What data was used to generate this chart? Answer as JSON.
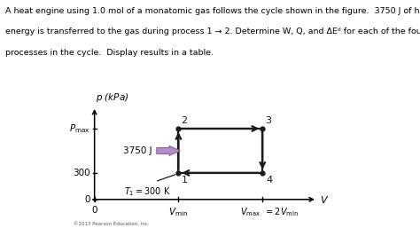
{
  "bg_color": "#ffffff",
  "text_color": "#000000",
  "cycle_color": "#1a1a1a",
  "copyright": "©2013 Pearson Education, Inc.",
  "Vmin": 1.0,
  "Vmax": 2.0,
  "P300": 0.3,
  "Pmax": 0.8,
  "line1": "A heat engine using 1.0 mol of a monatomic gas follows the cycle shown in the figure.  3750 J of heat",
  "line2": "energy is transferred to the gas during process 1 → 2. Determine W, Q, and ΔEᵈ for each of the four",
  "line3": "processes in the cycle.  Display results in a table.",
  "arrow_color": "#b090c0",
  "arrow_edge": "#9060a0"
}
